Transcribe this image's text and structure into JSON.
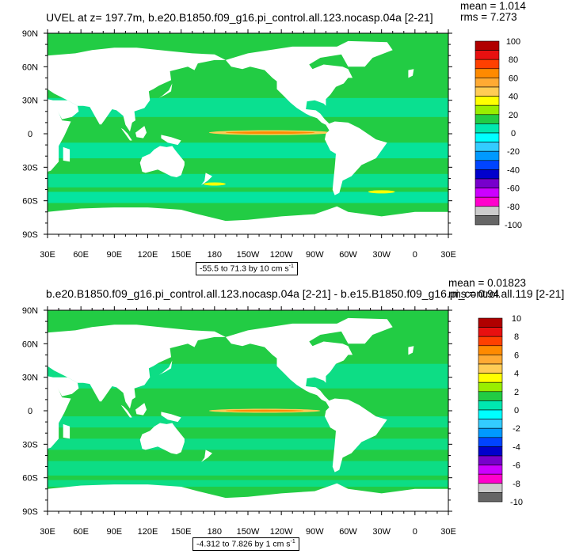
{
  "chart_data": [
    {
      "type": "heatmap",
      "title": "UVEL at z= 197.7m, b.e20.B1850.f09_g16.pi_control.all.123.nocasp.04a [2-21]",
      "stats": {
        "mean": "mean = 1.014",
        "rms": "rms = 7.273"
      },
      "x_ticks": [
        "30E",
        "60E",
        "90E",
        "120E",
        "150E",
        "180",
        "150W",
        "120W",
        "90W",
        "60W",
        "30W",
        "0",
        "30E"
      ],
      "y_ticks": [
        "90N",
        "60N",
        "30N",
        "0",
        "30S",
        "60S",
        "90S"
      ],
      "xlim": [
        30,
        390
      ],
      "ylim": [
        -90,
        90
      ],
      "colorbar": {
        "levels": [
          "100",
          "80",
          "60",
          "40",
          "20",
          "0",
          "-20",
          "-40",
          "-60",
          "-80",
          "-100"
        ],
        "colors": [
          "#b00000",
          "#e81010",
          "#ff4000",
          "#ff8a00",
          "#ffaa33",
          "#ffcc55",
          "#ffff00",
          "#99ee00",
          "#22cc44",
          "#00e8b0",
          "#00ffff",
          "#33ccff",
          "#0099ff",
          "#0044ff",
          "#0000cc",
          "#7700cc",
          "#cc00ff",
          "#ff00cc",
          "#cccccc",
          "#666666"
        ]
      },
      "range_label": "-55.5 to 71.3 by 10 cm s",
      "range_unit_exp": "-1"
    },
    {
      "type": "heatmap",
      "title": "b.e20.B1850.f09_g16.pi_control.all.123.nocasp.04a [2-21] - b.e15.B1850.f09_g16.pi_control.all.119 [2-21]",
      "stats": {
        "mean": "mean = 0.01823",
        "rms": "rms = 0.94"
      },
      "x_ticks": [
        "30E",
        "60E",
        "90E",
        "120E",
        "150E",
        "180",
        "150W",
        "120W",
        "90W",
        "60W",
        "30W",
        "0",
        "30E"
      ],
      "y_ticks": [
        "90N",
        "60N",
        "30N",
        "0",
        "30S",
        "60S",
        "90S"
      ],
      "xlim": [
        30,
        390
      ],
      "ylim": [
        -90,
        90
      ],
      "colorbar": {
        "levels": [
          "10",
          "8",
          "6",
          "4",
          "2",
          "0",
          "-2",
          "-4",
          "-6",
          "-8",
          "-10"
        ],
        "colors": [
          "#b00000",
          "#e81010",
          "#ff4000",
          "#ff8a00",
          "#ffaa33",
          "#ffcc55",
          "#ffff00",
          "#99ee00",
          "#22cc44",
          "#00e8b0",
          "#00ffff",
          "#33ccff",
          "#0099ff",
          "#0044ff",
          "#0000cc",
          "#7700cc",
          "#cc00ff",
          "#ff00cc",
          "#cccccc",
          "#666666"
        ]
      },
      "range_label": "-4.312 to 7.826 by 1 cm s",
      "range_unit_exp": "-1"
    }
  ]
}
